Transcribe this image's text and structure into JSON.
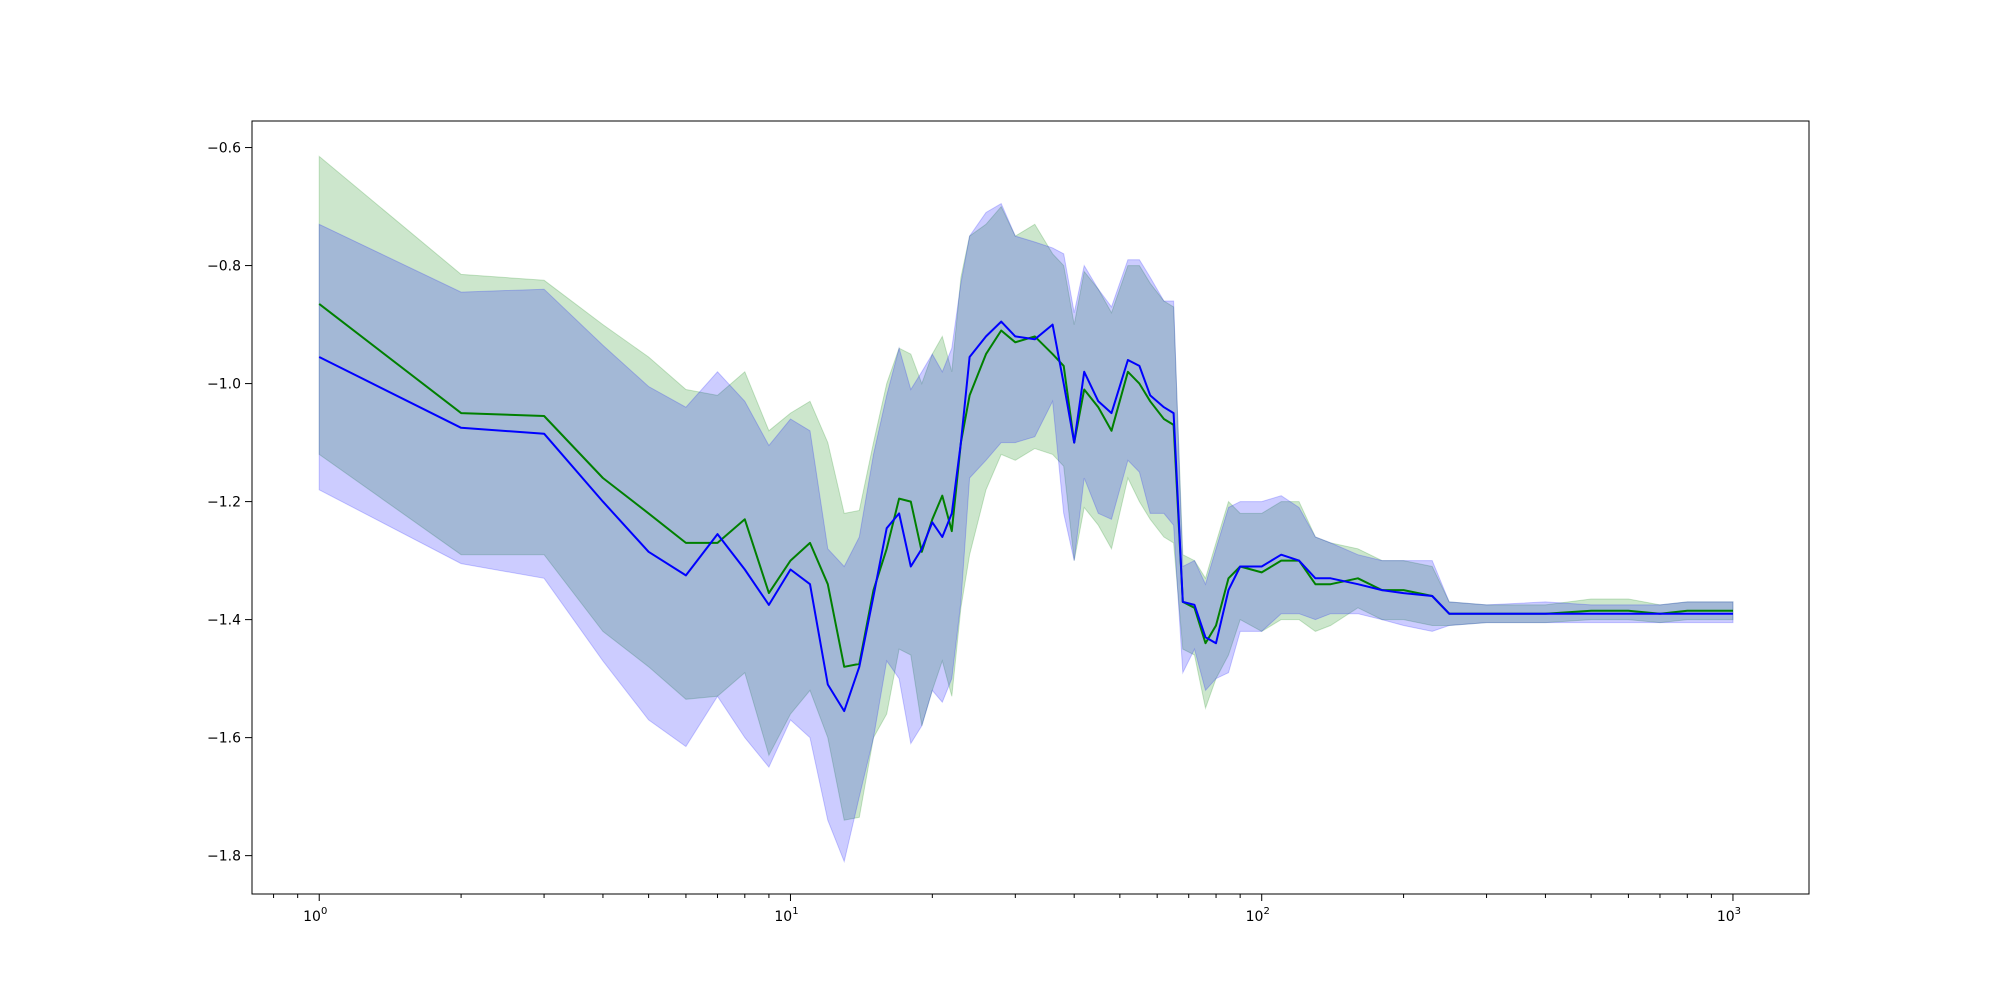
{
  "chart_data": {
    "type": "line",
    "title": "",
    "xlabel": "",
    "ylabel": "",
    "xscale": "log",
    "xlim": [
      0.72,
      1450
    ],
    "ylim": [
      -1.865,
      -0.555
    ],
    "grid": false,
    "legend": "none",
    "x_ticks": [
      {
        "base": "10",
        "exp": "0",
        "value": 1
      },
      {
        "base": "10",
        "exp": "1",
        "value": 10
      },
      {
        "base": "10",
        "exp": "2",
        "value": 100
      },
      {
        "base": "10",
        "exp": "3",
        "value": 1000
      }
    ],
    "y_ticks": [
      "−0.6",
      "−0.8",
      "−1.0",
      "−1.2",
      "−1.4",
      "−1.6",
      "−1.8"
    ],
    "y_tick_values": [
      -0.6,
      -0.8,
      -1.0,
      -1.2,
      -1.4,
      -1.6,
      -1.8
    ],
    "series": [
      {
        "color": "#008000",
        "band_color": "#008000",
        "x": [
          1,
          2,
          3,
          4,
          5,
          6,
          7,
          8,
          9,
          10,
          11,
          12,
          13,
          14,
          15,
          16,
          17,
          18,
          19,
          20,
          21,
          22,
          23,
          24,
          26,
          28,
          30,
          33,
          36,
          38,
          40,
          42,
          45,
          48,
          52,
          55,
          58,
          62,
          65,
          68,
          72,
          76,
          80,
          85,
          90,
          100,
          110,
          120,
          130,
          140,
          160,
          180,
          200,
          230,
          250,
          300,
          400,
          500,
          600,
          700,
          800,
          1000
        ],
        "y": [
          -0.865,
          -1.05,
          -1.055,
          -1.16,
          -1.22,
          -1.27,
          -1.27,
          -1.23,
          -1.355,
          -1.3,
          -1.27,
          -1.34,
          -1.48,
          -1.475,
          -1.35,
          -1.28,
          -1.195,
          -1.2,
          -1.285,
          -1.23,
          -1.19,
          -1.25,
          -1.1,
          -1.02,
          -0.95,
          -0.91,
          -0.93,
          -0.92,
          -0.95,
          -0.97,
          -1.1,
          -1.01,
          -1.04,
          -1.08,
          -0.98,
          -1.0,
          -1.03,
          -1.06,
          -1.07,
          -1.37,
          -1.38,
          -1.44,
          -1.41,
          -1.33,
          -1.31,
          -1.32,
          -1.3,
          -1.3,
          -1.34,
          -1.34,
          -1.33,
          -1.35,
          -1.35,
          -1.36,
          -1.39,
          -1.39,
          -1.39,
          -1.385,
          -1.385,
          -1.39,
          -1.385,
          -1.385
        ],
        "upper": [
          -0.615,
          -0.815,
          -0.825,
          -0.9,
          -0.955,
          -1.01,
          -1.02,
          -0.98,
          -1.08,
          -1.05,
          -1.03,
          -1.1,
          -1.22,
          -1.215,
          -1.1,
          -1.0,
          -0.94,
          -0.95,
          -1.0,
          -0.95,
          -0.92,
          -0.98,
          -0.82,
          -0.75,
          -0.73,
          -0.7,
          -0.75,
          -0.73,
          -0.78,
          -0.8,
          -0.9,
          -0.81,
          -0.84,
          -0.88,
          -0.8,
          -0.8,
          -0.83,
          -0.86,
          -0.87,
          -1.29,
          -1.3,
          -1.33,
          -1.27,
          -1.2,
          -1.22,
          -1.22,
          -1.2,
          -1.2,
          -1.26,
          -1.27,
          -1.28,
          -1.3,
          -1.3,
          -1.31,
          -1.37,
          -1.375,
          -1.375,
          -1.365,
          -1.365,
          -1.375,
          -1.37,
          -1.37
        ],
        "lower": [
          -1.12,
          -1.29,
          -1.29,
          -1.42,
          -1.48,
          -1.535,
          -1.53,
          -1.49,
          -1.63,
          -1.56,
          -1.52,
          -1.6,
          -1.74,
          -1.735,
          -1.6,
          -1.56,
          -1.45,
          -1.46,
          -1.58,
          -1.52,
          -1.47,
          -1.53,
          -1.38,
          -1.29,
          -1.18,
          -1.12,
          -1.13,
          -1.11,
          -1.12,
          -1.14,
          -1.3,
          -1.21,
          -1.24,
          -1.28,
          -1.16,
          -1.2,
          -1.23,
          -1.26,
          -1.27,
          -1.45,
          -1.46,
          -1.55,
          -1.5,
          -1.46,
          -1.4,
          -1.42,
          -1.4,
          -1.4,
          -1.42,
          -1.41,
          -1.38,
          -1.4,
          -1.4,
          -1.41,
          -1.41,
          -1.405,
          -1.405,
          -1.4,
          -1.4,
          -1.405,
          -1.4,
          -1.4
        ]
      },
      {
        "color": "#0000ff",
        "band_color": "#0000ff",
        "x": [
          1,
          2,
          3,
          4,
          5,
          6,
          7,
          8,
          9,
          10,
          11,
          12,
          13,
          14,
          15,
          16,
          17,
          18,
          19,
          20,
          21,
          22,
          23,
          24,
          26,
          28,
          30,
          33,
          36,
          38,
          40,
          42,
          45,
          48,
          52,
          55,
          58,
          62,
          65,
          68,
          72,
          76,
          80,
          85,
          90,
          100,
          110,
          120,
          130,
          140,
          160,
          180,
          200,
          230,
          250,
          300,
          400,
          500,
          600,
          700,
          800,
          1000
        ],
        "y": [
          -0.955,
          -1.075,
          -1.085,
          -1.2,
          -1.285,
          -1.325,
          -1.255,
          -1.315,
          -1.375,
          -1.315,
          -1.34,
          -1.51,
          -1.555,
          -1.48,
          -1.36,
          -1.245,
          -1.22,
          -1.31,
          -1.28,
          -1.235,
          -1.26,
          -1.22,
          -1.1,
          -0.955,
          -0.92,
          -0.895,
          -0.92,
          -0.925,
          -0.9,
          -1.0,
          -1.1,
          -0.98,
          -1.03,
          -1.05,
          -0.96,
          -0.97,
          -1.02,
          -1.04,
          -1.05,
          -1.37,
          -1.375,
          -1.43,
          -1.44,
          -1.35,
          -1.31,
          -1.31,
          -1.29,
          -1.3,
          -1.33,
          -1.33,
          -1.34,
          -1.35,
          -1.355,
          -1.36,
          -1.39,
          -1.39,
          -1.39,
          -1.39,
          -1.39,
          -1.39,
          -1.39,
          -1.39
        ],
        "upper": [
          -0.73,
          -0.845,
          -0.84,
          -0.935,
          -1.005,
          -1.04,
          -0.98,
          -1.03,
          -1.105,
          -1.06,
          -1.08,
          -1.28,
          -1.31,
          -1.26,
          -1.12,
          -1.02,
          -0.94,
          -1.01,
          -0.98,
          -0.95,
          -0.98,
          -0.94,
          -0.83,
          -0.75,
          -0.71,
          -0.695,
          -0.75,
          -0.76,
          -0.77,
          -0.78,
          -0.88,
          -0.8,
          -0.84,
          -0.87,
          -0.79,
          -0.79,
          -0.82,
          -0.86,
          -0.86,
          -1.31,
          -1.3,
          -1.34,
          -1.28,
          -1.21,
          -1.2,
          -1.2,
          -1.19,
          -1.21,
          -1.26,
          -1.27,
          -1.29,
          -1.3,
          -1.3,
          -1.3,
          -1.37,
          -1.375,
          -1.37,
          -1.375,
          -1.375,
          -1.375,
          -1.37,
          -1.37
        ],
        "lower": [
          -1.18,
          -1.305,
          -1.33,
          -1.47,
          -1.57,
          -1.615,
          -1.53,
          -1.6,
          -1.65,
          -1.57,
          -1.6,
          -1.74,
          -1.81,
          -1.7,
          -1.6,
          -1.47,
          -1.5,
          -1.61,
          -1.58,
          -1.52,
          -1.54,
          -1.5,
          -1.37,
          -1.16,
          -1.13,
          -1.1,
          -1.1,
          -1.09,
          -1.03,
          -1.22,
          -1.3,
          -1.16,
          -1.22,
          -1.23,
          -1.13,
          -1.15,
          -1.22,
          -1.22,
          -1.24,
          -1.49,
          -1.45,
          -1.52,
          -1.5,
          -1.49,
          -1.42,
          -1.42,
          -1.39,
          -1.39,
          -1.4,
          -1.39,
          -1.39,
          -1.4,
          -1.41,
          -1.42,
          -1.41,
          -1.405,
          -1.405,
          -1.405,
          -1.405,
          -1.405,
          -1.405,
          -1.405
        ]
      }
    ]
  }
}
